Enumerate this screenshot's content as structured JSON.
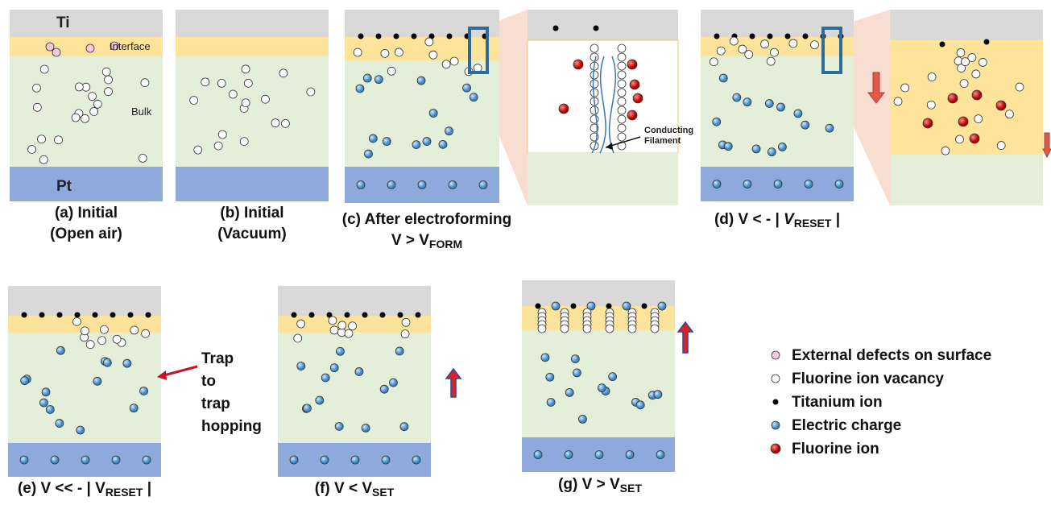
{
  "labels": {
    "ti": "Ti",
    "interface": "Interface",
    "bulk": "Bulk",
    "pt": "Pt",
    "conducting": "Conducting",
    "filament": "Filament"
  },
  "captions": {
    "a": [
      [
        {
          "text": "(a) Initial"
        }
      ],
      [
        {
          "text": "(Open air)"
        }
      ]
    ],
    "b": [
      [
        {
          "text": "(b) Initial"
        }
      ],
      [
        {
          "text": "(Vacuum)"
        }
      ]
    ],
    "c": [
      [
        {
          "text": "(c) After electroforming"
        }
      ],
      [
        {
          "text": "V >  V"
        },
        {
          "text": "FORM",
          "sub": true
        }
      ]
    ],
    "d": [
      [
        {
          "text": "(d) V < - | "
        },
        {
          "text": "V",
          "italic": true
        },
        {
          "text": "RESET",
          "sub": true
        },
        {
          "text": " |"
        }
      ]
    ],
    "e": [
      [
        {
          "text": "(e) V << - | V"
        },
        {
          "text": "RESET",
          "sub": true
        },
        {
          "text": " |"
        }
      ]
    ],
    "f": [
      [
        {
          "text": "(f) V < V"
        },
        {
          "text": "SET",
          "sub": true
        }
      ]
    ],
    "g": [
      [
        {
          "text": "(g) V >  V"
        },
        {
          "text": "SET",
          "sub": true
        }
      ]
    ]
  },
  "hopping": [
    "Trap",
    "to",
    "trap",
    "hopping"
  ],
  "legend": [
    "External defects on surface",
    "Fluorine ion vacancy",
    "Titanium ion",
    "Electric charge",
    "Fluorine ion"
  ]
}
